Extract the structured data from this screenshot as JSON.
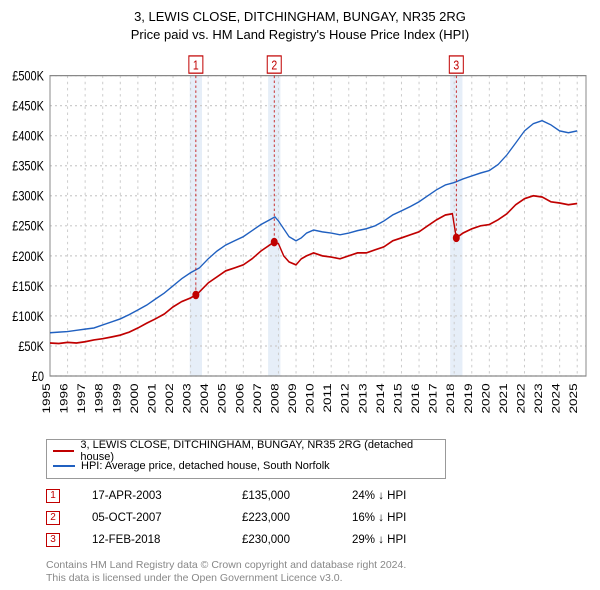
{
  "titles": {
    "line1": "3, LEWIS CLOSE, DITCHINGHAM, BUNGAY, NR35 2RG",
    "line2": "Price paid vs. HM Land Registry's House Price Index (HPI)"
  },
  "chart": {
    "type": "line",
    "background_color": "#ffffff",
    "plot_border_color": "#888888",
    "grid_color": "#cccccc",
    "grid_dash": "2,3",
    "title_fontsize": 13,
    "axis_fontsize": 11,
    "x_years": [
      1995,
      1996,
      1997,
      1998,
      1999,
      2000,
      2001,
      2002,
      2003,
      2004,
      2005,
      2006,
      2007,
      2008,
      2009,
      2010,
      2011,
      2012,
      2013,
      2014,
      2015,
      2016,
      2017,
      2018,
      2019,
      2020,
      2021,
      2022,
      2023,
      2024,
      2025
    ],
    "xlim": [
      1995,
      2025.5
    ],
    "ylim": [
      0,
      500000
    ],
    "ytick_step": 50000,
    "ytick_labels": [
      "£0",
      "£50K",
      "£100K",
      "£150K",
      "£200K",
      "£250K",
      "£300K",
      "£350K",
      "£400K",
      "£450K",
      "£500K"
    ],
    "series": [
      {
        "name": "property",
        "label": "3, LEWIS CLOSE, DITCHINGHAM, BUNGAY, NR35 2RG (detached house)",
        "color": "#c00000",
        "line_width": 1.4,
        "points": [
          [
            1995,
            55000
          ],
          [
            1995.5,
            54000
          ],
          [
            1996,
            56000
          ],
          [
            1996.5,
            55000
          ],
          [
            1997,
            57000
          ],
          [
            1997.5,
            60000
          ],
          [
            1998,
            62000
          ],
          [
            1998.5,
            65000
          ],
          [
            1999,
            68000
          ],
          [
            1999.5,
            73000
          ],
          [
            2000,
            80000
          ],
          [
            2000.5,
            88000
          ],
          [
            2001,
            95000
          ],
          [
            2001.5,
            103000
          ],
          [
            2002,
            115000
          ],
          [
            2002.5,
            124000
          ],
          [
            2003,
            130000
          ],
          [
            2003.3,
            135000
          ],
          [
            2003.5,
            140000
          ],
          [
            2004,
            155000
          ],
          [
            2004.5,
            165000
          ],
          [
            2005,
            175000
          ],
          [
            2005.5,
            180000
          ],
          [
            2006,
            185000
          ],
          [
            2006.5,
            195000
          ],
          [
            2007,
            208000
          ],
          [
            2007.5,
            218000
          ],
          [
            2007.76,
            223000
          ],
          [
            2008,
            220000
          ],
          [
            2008.3,
            200000
          ],
          [
            2008.6,
            190000
          ],
          [
            2009,
            185000
          ],
          [
            2009.3,
            195000
          ],
          [
            2009.6,
            200000
          ],
          [
            2010,
            205000
          ],
          [
            2010.5,
            200000
          ],
          [
            2011,
            198000
          ],
          [
            2011.5,
            195000
          ],
          [
            2012,
            200000
          ],
          [
            2012.5,
            205000
          ],
          [
            2013,
            205000
          ],
          [
            2013.5,
            210000
          ],
          [
            2014,
            215000
          ],
          [
            2014.5,
            225000
          ],
          [
            2015,
            230000
          ],
          [
            2015.5,
            235000
          ],
          [
            2016,
            240000
          ],
          [
            2016.5,
            250000
          ],
          [
            2017,
            260000
          ],
          [
            2017.5,
            268000
          ],
          [
            2017.9,
            270000
          ],
          [
            2018.12,
            230000
          ],
          [
            2018.5,
            238000
          ],
          [
            2019,
            245000
          ],
          [
            2019.5,
            250000
          ],
          [
            2020,
            252000
          ],
          [
            2020.5,
            260000
          ],
          [
            2021,
            270000
          ],
          [
            2021.5,
            285000
          ],
          [
            2022,
            295000
          ],
          [
            2022.5,
            300000
          ],
          [
            2023,
            298000
          ],
          [
            2023.5,
            290000
          ],
          [
            2024,
            288000
          ],
          [
            2024.5,
            285000
          ],
          [
            2025,
            287000
          ]
        ]
      },
      {
        "name": "hpi",
        "label": "HPI: Average price, detached house, South Norfolk",
        "color": "#2060c0",
        "line_width": 1.2,
        "points": [
          [
            1995,
            72000
          ],
          [
            1995.5,
            73000
          ],
          [
            1996,
            74000
          ],
          [
            1996.5,
            76000
          ],
          [
            1997,
            78000
          ],
          [
            1997.5,
            80000
          ],
          [
            1998,
            85000
          ],
          [
            1998.5,
            90000
          ],
          [
            1999,
            95000
          ],
          [
            1999.5,
            102000
          ],
          [
            2000,
            110000
          ],
          [
            2000.5,
            118000
          ],
          [
            2001,
            128000
          ],
          [
            2001.5,
            138000
          ],
          [
            2002,
            150000
          ],
          [
            2002.5,
            162000
          ],
          [
            2003,
            172000
          ],
          [
            2003.5,
            180000
          ],
          [
            2004,
            195000
          ],
          [
            2004.5,
            208000
          ],
          [
            2005,
            218000
          ],
          [
            2005.5,
            225000
          ],
          [
            2006,
            232000
          ],
          [
            2006.5,
            242000
          ],
          [
            2007,
            252000
          ],
          [
            2007.5,
            260000
          ],
          [
            2007.8,
            265000
          ],
          [
            2008,
            258000
          ],
          [
            2008.3,
            245000
          ],
          [
            2008.6,
            232000
          ],
          [
            2009,
            225000
          ],
          [
            2009.3,
            230000
          ],
          [
            2009.6,
            238000
          ],
          [
            2010,
            243000
          ],
          [
            2010.5,
            240000
          ],
          [
            2011,
            238000
          ],
          [
            2011.5,
            235000
          ],
          [
            2012,
            238000
          ],
          [
            2012.5,
            242000
          ],
          [
            2013,
            245000
          ],
          [
            2013.5,
            250000
          ],
          [
            2014,
            258000
          ],
          [
            2014.5,
            268000
          ],
          [
            2015,
            275000
          ],
          [
            2015.5,
            282000
          ],
          [
            2016,
            290000
          ],
          [
            2016.5,
            300000
          ],
          [
            2017,
            310000
          ],
          [
            2017.5,
            318000
          ],
          [
            2018,
            322000
          ],
          [
            2018.5,
            328000
          ],
          [
            2019,
            333000
          ],
          [
            2019.5,
            338000
          ],
          [
            2020,
            342000
          ],
          [
            2020.5,
            352000
          ],
          [
            2021,
            368000
          ],
          [
            2021.5,
            388000
          ],
          [
            2022,
            408000
          ],
          [
            2022.5,
            420000
          ],
          [
            2023,
            425000
          ],
          [
            2023.5,
            418000
          ],
          [
            2024,
            408000
          ],
          [
            2024.5,
            405000
          ],
          [
            2025,
            408000
          ]
        ]
      }
    ],
    "transaction_markers": [
      {
        "num": "1",
        "year": 2003.3,
        "price": 135000,
        "band_color": "#e6eef8"
      },
      {
        "num": "2",
        "year": 2007.76,
        "price": 223000,
        "band_color": "#e6eef8"
      },
      {
        "num": "3",
        "year": 2018.12,
        "price": 230000,
        "band_color": "#e6eef8"
      }
    ],
    "marker_box_border": "#c00000",
    "marker_dot_color": "#c00000",
    "marker_band_width_years": 0.7
  },
  "legend": {
    "border_color": "#999999",
    "fontsize": 11,
    "rows": [
      {
        "color": "#c00000",
        "label": "3, LEWIS CLOSE, DITCHINGHAM, BUNGAY, NR35 2RG (detached house)"
      },
      {
        "color": "#2060c0",
        "label": "HPI: Average price, detached house, South Norfolk"
      }
    ]
  },
  "transactions_table": {
    "fontsize": 11.5,
    "rows": [
      {
        "num": "1",
        "date": "17-APR-2003",
        "price": "£135,000",
        "diff": "24% ↓ HPI"
      },
      {
        "num": "2",
        "date": "05-OCT-2007",
        "price": "£223,000",
        "diff": "16% ↓ HPI"
      },
      {
        "num": "3",
        "date": "12-FEB-2018",
        "price": "£230,000",
        "diff": "29% ↓ HPI"
      }
    ]
  },
  "attribution": {
    "line1": "Contains HM Land Registry data © Crown copyright and database right 2024.",
    "line2": "This data is licensed under the Open Government Licence v3.0.",
    "color": "#888888",
    "fontsize": 10.5
  }
}
